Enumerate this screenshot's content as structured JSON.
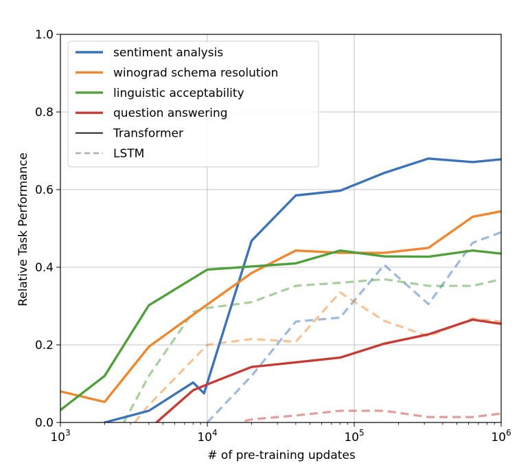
{
  "chart_data": {
    "type": "line",
    "title": "",
    "xlabel": "# of pre-training updates",
    "ylabel": "Relative Task Performance",
    "xscale": "log",
    "xlim": [
      1000,
      1000000
    ],
    "ylim": [
      0.0,
      1.0
    ],
    "grid": true,
    "legend_position": "top-left",
    "x_ticks": [
      {
        "value": 1000,
        "base": "10",
        "exp": "3"
      },
      {
        "value": 10000,
        "base": "10",
        "exp": "4"
      },
      {
        "value": 100000,
        "base": "10",
        "exp": "5"
      },
      {
        "value": 1000000,
        "base": "10",
        "exp": "6"
      }
    ],
    "y_ticks": [
      {
        "value": 0.0,
        "label": "0.0"
      },
      {
        "value": 0.2,
        "label": "0.2"
      },
      {
        "value": 0.4,
        "label": "0.4"
      },
      {
        "value": 0.6,
        "label": "0.6"
      },
      {
        "value": 0.8,
        "label": "0.8"
      },
      {
        "value": 1.0,
        "label": "1.0"
      }
    ],
    "legend": [
      {
        "label": "sentiment analysis",
        "color": "#3b73b9",
        "dash": false
      },
      {
        "label": "winograd schema resolution",
        "color": "#f0862e",
        "dash": false
      },
      {
        "label": "linguistic acceptability",
        "color": "#4f9f3a",
        "dash": false
      },
      {
        "label": "question answering",
        "color": "#c83a34",
        "dash": false
      },
      {
        "label": "Transformer",
        "color": "#222222",
        "dash": false
      },
      {
        "label": "LSTM",
        "color": "#999999",
        "dash": true
      }
    ],
    "series": [
      {
        "name": "sentiment analysis (Transformer)",
        "color": "#3b73b9",
        "model": "Transformer",
        "x": [
          2000,
          4000,
          8000,
          9500,
          20000,
          40000,
          80000,
          160000,
          320000,
          640000,
          1000000
        ],
        "values": [
          0.0,
          0.03,
          0.103,
          0.075,
          0.468,
          0.585,
          0.597,
          0.643,
          0.68,
          0.671,
          0.678
        ]
      },
      {
        "name": "winograd schema resolution (Transformer)",
        "color": "#f0862e",
        "model": "Transformer",
        "x": [
          1000,
          2000,
          4000,
          10000,
          20000,
          40000,
          80000,
          160000,
          320000,
          640000,
          1000000
        ],
        "values": [
          0.08,
          0.053,
          0.195,
          0.304,
          0.385,
          0.443,
          0.437,
          0.437,
          0.45,
          0.53,
          0.544
        ]
      },
      {
        "name": "linguistic acceptability (Transformer)",
        "color": "#4f9f3a",
        "model": "Transformer",
        "x": [
          1000,
          2000,
          4000,
          10000,
          20000,
          40000,
          80000,
          160000,
          320000,
          640000,
          1000000
        ],
        "values": [
          0.032,
          0.12,
          0.302,
          0.394,
          0.402,
          0.41,
          0.443,
          0.428,
          0.427,
          0.443,
          0.435
        ]
      },
      {
        "name": "question answering (Transformer)",
        "color": "#c83a34",
        "model": "Transformer",
        "x": [
          4500,
          8000,
          10000,
          20000,
          40000,
          80000,
          160000,
          320000,
          640000,
          1000000
        ],
        "values": [
          0.0,
          0.083,
          0.098,
          0.143,
          0.155,
          0.167,
          0.203,
          0.227,
          0.265,
          0.254
        ]
      },
      {
        "name": "sentiment analysis (LSTM)",
        "color": "#3b73b9",
        "model": "LSTM",
        "x": [
          10000,
          20000,
          40000,
          80000,
          160000,
          320000,
          640000,
          1000000
        ],
        "values": [
          0.0,
          0.12,
          0.26,
          0.27,
          0.406,
          0.305,
          0.463,
          0.49
        ]
      },
      {
        "name": "winograd schema resolution (LSTM)",
        "color": "#f0862e",
        "model": "LSTM",
        "x": [
          3200,
          4000,
          10000,
          20000,
          40000,
          80000,
          160000,
          320000,
          640000,
          1000000
        ],
        "values": [
          0.0,
          0.045,
          0.2,
          0.215,
          0.208,
          0.335,
          0.262,
          0.222,
          0.268,
          0.26
        ]
      },
      {
        "name": "linguistic acceptability (LSTM)",
        "color": "#4f9f3a",
        "model": "LSTM",
        "x": [
          2700,
          4000,
          8000,
          10000,
          20000,
          40000,
          80000,
          160000,
          320000,
          640000,
          1000000
        ],
        "values": [
          0.0,
          0.12,
          0.285,
          0.295,
          0.31,
          0.352,
          0.36,
          0.369,
          0.352,
          0.352,
          0.369
        ]
      },
      {
        "name": "question answering (LSTM)",
        "color": "#c83a34",
        "model": "LSTM",
        "x": [
          18000,
          20000,
          40000,
          80000,
          160000,
          320000,
          640000,
          1000000
        ],
        "values": [
          0.004,
          0.008,
          0.018,
          0.03,
          0.03,
          0.014,
          0.014,
          0.023
        ]
      }
    ]
  }
}
